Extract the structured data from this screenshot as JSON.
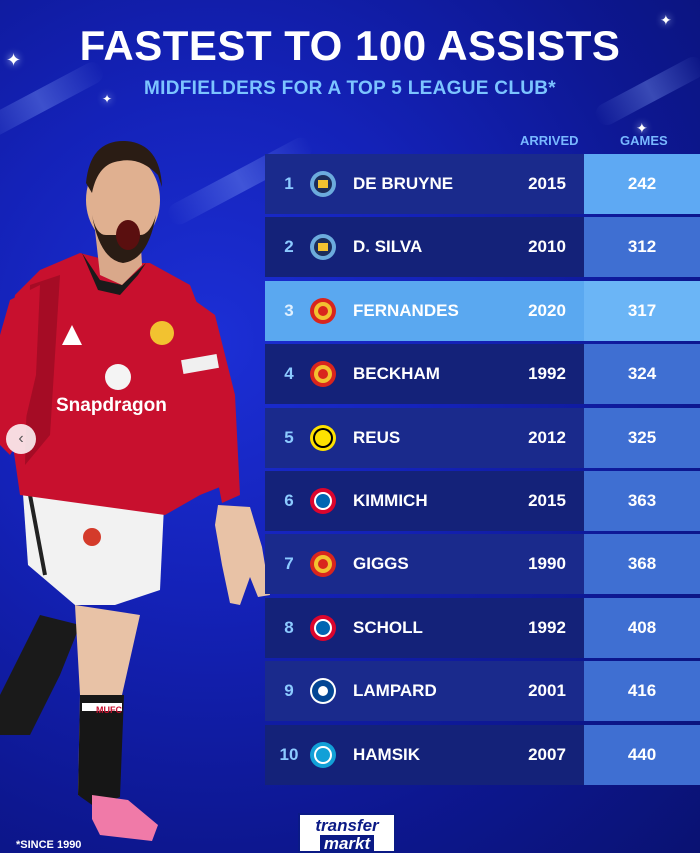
{
  "title": "FASTEST TO 100 ASSISTS",
  "subtitle": "MIDFIELDERS FOR A TOP 5 LEAGUE CLUB*",
  "columns": {
    "arrived": "ARRIVED",
    "games": "GAMES"
  },
  "rows": [
    {
      "rank": "1",
      "name": "DE BRUYNE",
      "club_icon": "man-city-crest-icon",
      "arrived": "2015",
      "games": "242"
    },
    {
      "rank": "2",
      "name": "D. SILVA",
      "club_icon": "man-city-crest-icon",
      "arrived": "2010",
      "games": "312"
    },
    {
      "rank": "3",
      "name": "FERNANDES",
      "club_icon": "man-united-crest-icon",
      "arrived": "2020",
      "games": "317"
    },
    {
      "rank": "4",
      "name": "BECKHAM",
      "club_icon": "man-united-crest-icon",
      "arrived": "1992",
      "games": "324"
    },
    {
      "rank": "5",
      "name": "REUS",
      "club_icon": "dortmund-crest-icon",
      "arrived": "2012",
      "games": "325"
    },
    {
      "rank": "6",
      "name": "KIMMICH",
      "club_icon": "bayern-crest-icon",
      "arrived": "2015",
      "games": "363"
    },
    {
      "rank": "7",
      "name": "GIGGS",
      "club_icon": "man-united-crest-icon",
      "arrived": "1990",
      "games": "368"
    },
    {
      "rank": "8",
      "name": "SCHOLL",
      "club_icon": "bayern-crest-icon",
      "arrived": "1992",
      "games": "408"
    },
    {
      "rank": "9",
      "name": "LAMPARD",
      "club_icon": "chelsea-crest-icon",
      "arrived": "2001",
      "games": "416"
    },
    {
      "rank": "10",
      "name": "HAMSIK",
      "club_icon": "napoli-crest-icon",
      "arrived": "2007",
      "games": "440"
    }
  ],
  "footnote": "*SINCE 1990",
  "brand": {
    "line1": "transfer",
    "line2": "markt"
  },
  "player": {
    "shirt_sponsor": "Snapdragon",
    "shorts_text": "MUFC"
  },
  "nav": {
    "prev_glyph": "‹"
  },
  "colors": {
    "accent": "#7cc4ff",
    "highlight_row": "#5aa8f0",
    "background": "#1422b8"
  }
}
